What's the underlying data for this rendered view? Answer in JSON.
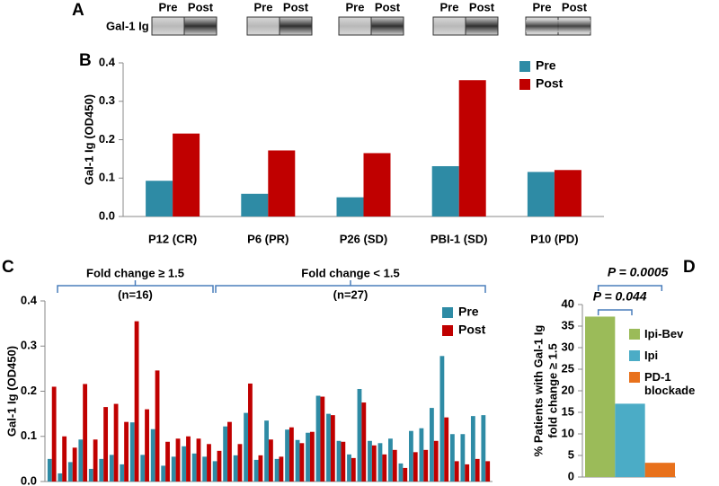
{
  "blot": {
    "label": "A",
    "row_label": "Gal-1 Ig",
    "lanes": [
      [
        "Pre",
        "Post"
      ],
      [
        "Pre",
        "Post"
      ],
      [
        "Pre",
        "Post"
      ],
      [
        "Pre",
        "Post"
      ],
      [
        "Pre",
        "Post"
      ]
    ]
  },
  "chart_data": [
    {
      "type": "bar",
      "panel": "B",
      "y_label": "Gal-1 Ig (OD450)",
      "categories": [
        "P12 (CR)",
        "P6 (PR)",
        "P26 (SD)",
        "PBI-1 (SD)",
        "P10 (PD)"
      ],
      "series": [
        {
          "name": "Pre",
          "color": "#2e8ba5",
          "values": [
            0.093,
            0.059,
            0.05,
            0.131,
            0.116
          ]
        },
        {
          "name": "Post",
          "color": "#c00000",
          "values": [
            0.216,
            0.172,
            0.165,
            0.355,
            0.121
          ]
        }
      ],
      "ylim": [
        0,
        0.4
      ],
      "yticks": [
        {
          "value": 0,
          "label": "0.0"
        },
        0.1,
        0.2,
        0.3,
        0.4
      ],
      "legend": "upper right"
    },
    {
      "type": "bar",
      "panel": "C",
      "y_label": "Gal-1 Ig (OD450)",
      "categories": [
        null,
        null,
        null,
        null,
        null,
        null,
        null,
        null,
        null,
        null,
        null,
        null,
        null,
        null,
        null,
        null,
        null,
        null,
        null,
        null,
        null,
        null,
        null,
        null,
        null,
        null,
        null,
        null,
        null,
        null,
        null,
        null,
        null,
        null,
        null,
        null,
        null,
        null,
        null,
        null,
        null,
        null,
        null
      ],
      "series": [
        {
          "name": "Pre",
          "color": "#2e8ba5",
          "values": [
            0.05,
            0.018,
            0.043,
            0.093,
            0.028,
            0.05,
            0.059,
            0.038,
            0.131,
            0.059,
            0.116,
            0.035,
            0.055,
            0.078,
            0.062,
            0.055,
            0.045,
            0.122,
            0.058,
            0.152,
            0.048,
            0.135,
            0.05,
            0.115,
            0.092,
            0.108,
            0.19,
            0.15,
            0.09,
            0.06,
            0.205,
            0.09,
            0.085,
            0.095,
            0.04,
            0.112,
            0.118,
            0.163,
            0.278,
            0.105,
            0.105,
            0.145,
            0.147
          ]
        },
        {
          "name": "Post",
          "color": "#c00000",
          "values": [
            0.21,
            0.1,
            0.075,
            0.216,
            0.093,
            0.165,
            0.172,
            0.132,
            0.355,
            0.16,
            0.246,
            0.088,
            0.095,
            0.1,
            0.095,
            0.083,
            0.068,
            0.132,
            0.083,
            0.217,
            0.058,
            0.093,
            0.055,
            0.12,
            0.085,
            0.11,
            0.188,
            0.147,
            0.088,
            0.052,
            0.175,
            0.08,
            0.06,
            0.07,
            0.03,
            0.065,
            0.07,
            0.09,
            0.142,
            0.045,
            0.038,
            0.05,
            0.045
          ]
        }
      ],
      "ylim": [
        0,
        0.4
      ],
      "yticks": [
        {
          "value": 0,
          "label": "0.0"
        },
        0.1,
        0.2,
        0.3,
        0.4
      ],
      "annotations": [
        [
          "Fold change ≥ 1.5",
          "(n=16)"
        ],
        [
          "Fold change < 1.5",
          "(n=27)"
        ]
      ],
      "legend": "upper right"
    },
    {
      "type": "bar",
      "panel": "D",
      "y_label": [
        "% Patients with Gal-1 Ig",
        "fold change ≥ 1.5"
      ],
      "categories": [
        "Ipi-Bev",
        "Ipi",
        "PD-1 blockade"
      ],
      "values": [
        37.2,
        17,
        3.3
      ],
      "colors": [
        "#9bbb59",
        "#4bacc6",
        "#e8711c"
      ],
      "ylim": [
        0,
        40
      ],
      "yticks": [
        0,
        5,
        10,
        15,
        20,
        25,
        30,
        35,
        40
      ],
      "annotations": [
        "P = 0.044",
        "P = 0.0005"
      ],
      "legend": "upper right"
    }
  ]
}
